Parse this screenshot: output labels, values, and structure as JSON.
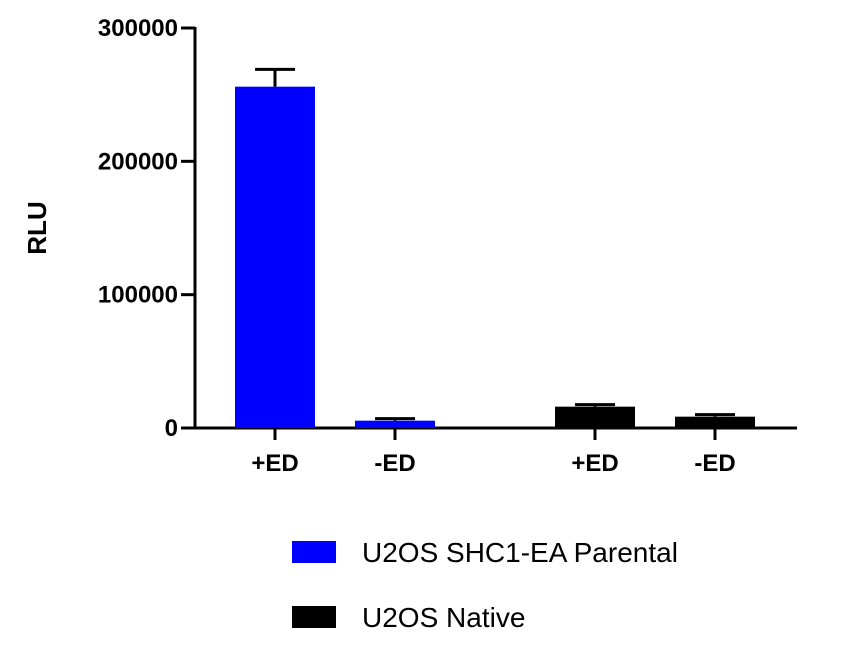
{
  "chart_data": {
    "type": "bar",
    "title": "",
    "ylabel": "RLU",
    "xlabel": "",
    "ylim": [
      0,
      300000
    ],
    "yticks": [
      0,
      100000,
      200000,
      300000
    ],
    "ytick_labels": [
      "0",
      "100000",
      "200000",
      "300000"
    ],
    "grid": false,
    "legend_position": "bottom",
    "groups": [
      {
        "series": "U2OS SHC1-EA Parental",
        "categories": [
          "+ED",
          "-ED"
        ],
        "values": [
          256000,
          5500
        ],
        "errors": [
          13000,
          1500
        ]
      },
      {
        "series": "U2OS Native",
        "categories": [
          "+ED",
          "-ED"
        ],
        "values": [
          16000,
          8500
        ],
        "errors": [
          1500,
          1500
        ]
      }
    ],
    "series": [
      {
        "name": "U2OS SHC1-EA Parental",
        "color": "#0000ff"
      },
      {
        "name": "U2OS Native",
        "color": "#000000"
      }
    ]
  }
}
